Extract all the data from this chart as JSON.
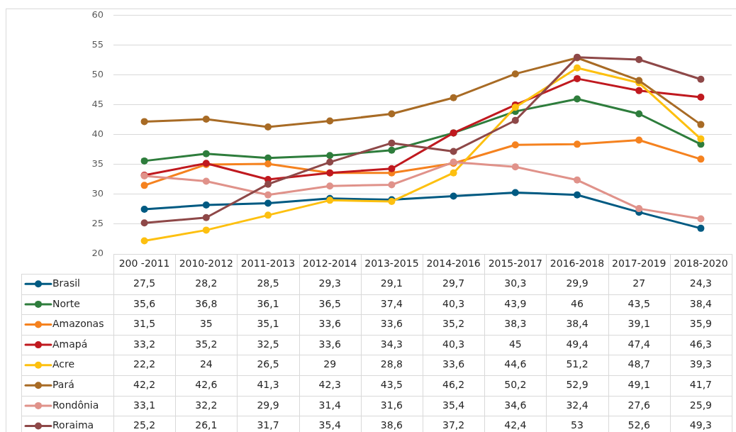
{
  "chart_data": {
    "type": "line",
    "categories": [
      "200 -2011",
      "2010-2012",
      "2011-2013",
      "2012-2014",
      "2013-2015",
      "2014-2016",
      "2015-2017",
      "2016-2018",
      "2017-2019",
      "2018-2020"
    ],
    "series": [
      {
        "name": "Brasil",
        "color": "#005a82",
        "values": [
          27.5,
          28.2,
          28.5,
          29.3,
          29.1,
          29.7,
          30.3,
          29.9,
          27,
          24.3
        ],
        "value_labels": [
          "27,5",
          "28,2",
          "28,5",
          "29,3",
          "29,1",
          "29,7",
          "30,3",
          "29,9",
          "27",
          "24,3"
        ]
      },
      {
        "name": "Norte",
        "color": "#2e7d3c",
        "values": [
          35.6,
          36.8,
          36.1,
          36.5,
          37.4,
          40.3,
          43.9,
          46,
          43.5,
          38.4
        ],
        "value_labels": [
          "35,6",
          "36,8",
          "36,1",
          "36,5",
          "37,4",
          "40,3",
          "43,9",
          "46",
          "43,5",
          "38,4"
        ]
      },
      {
        "name": "Amazonas",
        "color": "#f5821f",
        "values": [
          31.5,
          35,
          35.1,
          33.6,
          33.6,
          35.2,
          38.3,
          38.4,
          39.1,
          35.9
        ],
        "value_labels": [
          "31,5",
          "35",
          "35,1",
          "33,6",
          "33,6",
          "35,2",
          "38,3",
          "38,4",
          "39,1",
          "35,9"
        ]
      },
      {
        "name": "Amapá",
        "color": "#c0191f",
        "values": [
          33.2,
          35.2,
          32.5,
          33.6,
          34.3,
          40.3,
          45,
          49.4,
          47.4,
          46.3
        ],
        "value_labels": [
          "33,2",
          "35,2",
          "32,5",
          "33,6",
          "34,3",
          "40,3",
          "45",
          "49,4",
          "47,4",
          "46,3"
        ]
      },
      {
        "name": "Acre",
        "color": "#fdc010",
        "values": [
          22.2,
          24,
          26.5,
          29,
          28.8,
          33.6,
          44.6,
          51.2,
          48.7,
          39.3
        ],
        "value_labels": [
          "22,2",
          "24",
          "26,5",
          "29",
          "28,8",
          "33,6",
          "44,6",
          "51,2",
          "48,7",
          "39,3"
        ]
      },
      {
        "name": "Pará",
        "color": "#a86b25",
        "values": [
          42.2,
          42.6,
          41.3,
          42.3,
          43.5,
          46.2,
          50.2,
          52.9,
          49.1,
          41.7
        ],
        "value_labels": [
          "42,2",
          "42,6",
          "41,3",
          "42,3",
          "43,5",
          "46,2",
          "50,2",
          "52,9",
          "49,1",
          "41,7"
        ]
      },
      {
        "name": "Rondônia",
        "color": "#e0928a",
        "values": [
          33.1,
          32.2,
          29.9,
          31.4,
          31.6,
          35.4,
          34.6,
          32.4,
          27.6,
          25.9
        ],
        "value_labels": [
          "33,1",
          "32,2",
          "29,9",
          "31,4",
          "31,6",
          "35,4",
          "34,6",
          "32,4",
          "27,6",
          "25,9"
        ]
      },
      {
        "name": "Roraima",
        "color": "#8e4848",
        "values": [
          25.2,
          26.1,
          31.7,
          35.4,
          38.6,
          37.2,
          42.4,
          53,
          52.6,
          49.3
        ],
        "value_labels": [
          "25,2",
          "26,1",
          "31,7",
          "35,4",
          "38,6",
          "37,2",
          "42,4",
          "53",
          "52,6",
          "49,3"
        ]
      }
    ],
    "ylim": [
      20,
      60
    ],
    "yticks": [
      20,
      25,
      30,
      35,
      40,
      45,
      50,
      55,
      60
    ],
    "grid": "y",
    "legend": "bottom",
    "marker": "circle",
    "line_style": "solid"
  }
}
